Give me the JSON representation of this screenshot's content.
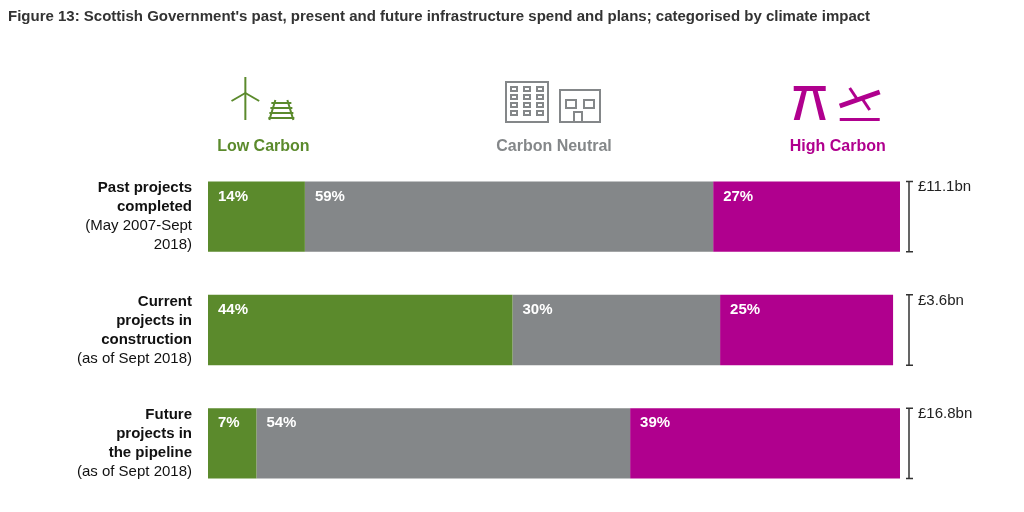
{
  "chart_data": {
    "type": "bar",
    "title": "Figure 13: Scottish Government's past, present and future infrastructure spend and plans; categorised by climate impact",
    "orientation": "horizontal",
    "stacked": true,
    "categories": [
      [
        "Past projects",
        "completed",
        "(May 2007-Sept",
        "2018)"
      ],
      [
        "Current",
        "projects in",
        "construction",
        "(as of Sept 2018)"
      ],
      [
        "Future",
        "projects in",
        "the pipeline",
        "(as of Sept 2018)"
      ]
    ],
    "series": [
      {
        "name": "Low Carbon",
        "color": "#5b8a2c",
        "values": [
          14,
          44,
          7
        ],
        "value_labels": [
          "14%",
          "44%",
          "7%"
        ]
      },
      {
        "name": "Carbon Neutral",
        "color": "#848789",
        "values": [
          59,
          30,
          54
        ],
        "value_labels": [
          "59%",
          "30%",
          "54%"
        ]
      },
      {
        "name": "High Carbon",
        "color": "#b0008e",
        "values": [
          27,
          25,
          39
        ],
        "value_labels": [
          "27%",
          "25%",
          "39%"
        ]
      }
    ],
    "xlim": [
      0,
      100
    ],
    "annotations": [
      "£11.1bn",
      "£3.6bn",
      "£16.8bn"
    ],
    "data_labels": true,
    "grid": false,
    "tick_labels": "y",
    "legend": "top"
  }
}
